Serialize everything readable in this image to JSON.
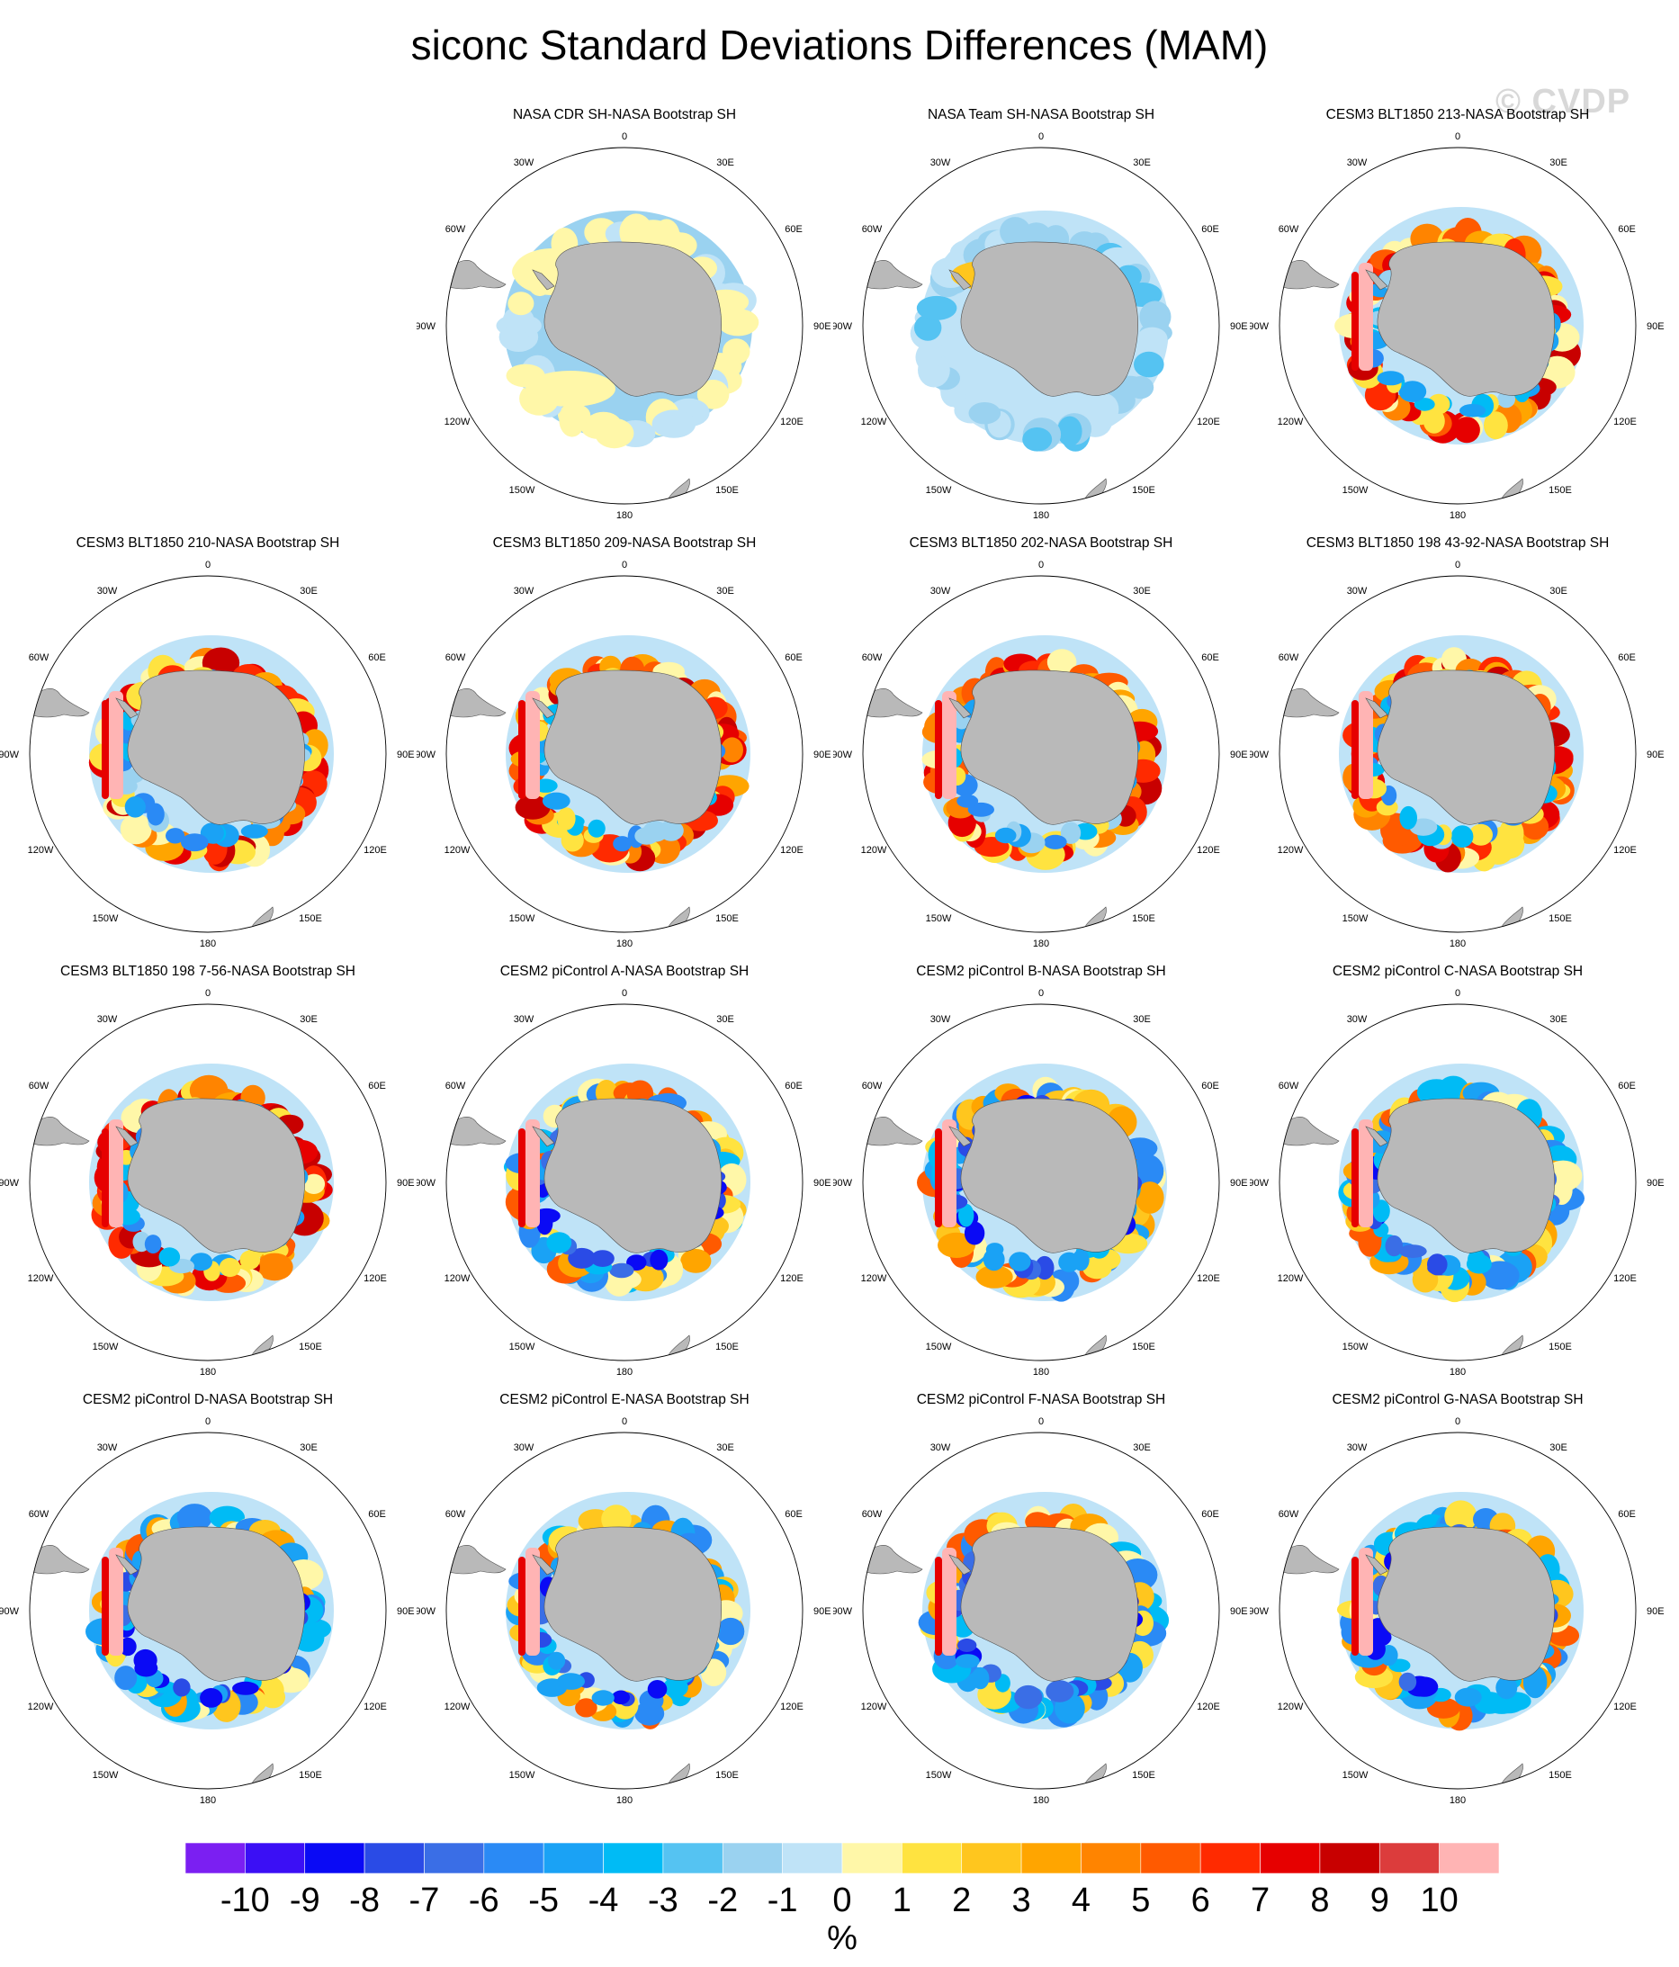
{
  "title": "siconc Standard Deviations Differences (MAM)",
  "watermark": "© CVDP",
  "longitude_labels": {
    "top": "0",
    "bottom": "180",
    "right_upper": "30E",
    "right_mid_upper": "60E",
    "right_mid": "90E",
    "right_mid_lower": "120E",
    "right_lower": "150E",
    "left_upper": "30W",
    "left_mid_upper": "60W",
    "left_mid": "90W",
    "left_mid_lower": "120W",
    "left_lower": "150W"
  },
  "panels": [
    {
      "title": "NASA CDR SH-NASA Bootstrap SH",
      "row": 0,
      "col": 1
    },
    {
      "title": "NASA Team SH-NASA Bootstrap SH",
      "row": 0,
      "col": 2
    },
    {
      "title": "CESM3 BLT1850 213-NASA Bootstrap SH",
      "row": 0,
      "col": 3
    },
    {
      "title": "CESM3 BLT1850 210-NASA Bootstrap SH",
      "row": 1,
      "col": 0
    },
    {
      "title": "CESM3 BLT1850 209-NASA Bootstrap SH",
      "row": 1,
      "col": 1
    },
    {
      "title": "CESM3 BLT1850 202-NASA Bootstrap SH",
      "row": 1,
      "col": 2
    },
    {
      "title": "CESM3 BLT1850 198 43-92-NASA Bootstrap SH",
      "row": 1,
      "col": 3
    },
    {
      "title": "CESM3 BLT1850 198 7-56-NASA Bootstrap SH",
      "row": 2,
      "col": 0
    },
    {
      "title": "CESM2 piControl A-NASA Bootstrap SH",
      "row": 2,
      "col": 1
    },
    {
      "title": "CESM2 piControl B-NASA Bootstrap SH",
      "row": 2,
      "col": 2
    },
    {
      "title": "CESM2 piControl C-NASA Bootstrap SH",
      "row": 2,
      "col": 3
    },
    {
      "title": "CESM2 piControl D-NASA Bootstrap SH",
      "row": 3,
      "col": 0
    },
    {
      "title": "CESM2 piControl E-NASA Bootstrap SH",
      "row": 3,
      "col": 1
    },
    {
      "title": "CESM2 piControl F-NASA Bootstrap SH",
      "row": 3,
      "col": 2
    },
    {
      "title": "CESM2 piControl G-NASA Bootstrap SH",
      "row": 3,
      "col": 3
    }
  ],
  "colorbar": {
    "units": "%",
    "labels": [
      "-10",
      "-9",
      "-8",
      "-7",
      "-6",
      "-5",
      "-4",
      "-3",
      "-2",
      "-1",
      "0",
      "1",
      "2",
      "3",
      "4",
      "5",
      "6",
      "7",
      "8",
      "9",
      "10"
    ],
    "colors": [
      "#7b1ff2",
      "#3b0ff5",
      "#0a0af5",
      "#2a4be6",
      "#3a6ee6",
      "#2a8af5",
      "#1aa2f5",
      "#00bbf5",
      "#55c3f2",
      "#9ad2f0",
      "#bfe3f7",
      "#fff7a8",
      "#ffe340",
      "#ffc61e",
      "#ffa500",
      "#ff8400",
      "#ff5a00",
      "#ff2a00",
      "#e60000",
      "#c80000",
      "#dc3c3c",
      "#ffb4b4"
    ]
  },
  "map_colors": {
    "land": "#b9b9b9",
    "land_outline": "#505050"
  }
}
